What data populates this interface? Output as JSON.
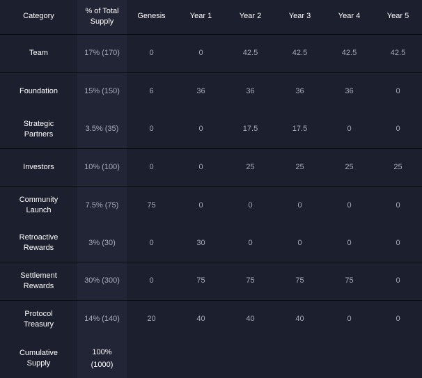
{
  "headers": [
    "Category",
    "% of Total Supply",
    "Genesis",
    "Year 1",
    "Year 2",
    "Year 3",
    "Year 4",
    "Year 5"
  ],
  "header_pct_lines": [
    "% of Total",
    "Supply"
  ],
  "rows": [
    {
      "category": [
        "Team"
      ],
      "pct": "17% (170)",
      "values": [
        "0",
        "0",
        "42.5",
        "42.5",
        "42.5",
        "42.5"
      ]
    },
    {
      "category": [
        "Foundation"
      ],
      "pct": "15% (150)",
      "values": [
        "6",
        "36",
        "36",
        "36",
        "36",
        "0"
      ]
    },
    {
      "category": [
        "Strategic",
        "Partners"
      ],
      "pct": "3.5% (35)",
      "values": [
        "0",
        "0",
        "17.5",
        "17.5",
        "0",
        "0"
      ]
    },
    {
      "category": [
        "Investors"
      ],
      "pct": "10% (100)",
      "values": [
        "0",
        "0",
        "25",
        "25",
        "25",
        "25"
      ]
    },
    {
      "category": [
        "Community",
        "Launch"
      ],
      "pct": "7.5% (75)",
      "values": [
        "75",
        "0",
        "0",
        "0",
        "0",
        "0"
      ]
    },
    {
      "category": [
        "Retroactive",
        "Rewards"
      ],
      "pct": "3% (30)",
      "values": [
        "0",
        "30",
        "0",
        "0",
        "0",
        "0"
      ]
    },
    {
      "category": [
        "Settlement",
        "Rewards"
      ],
      "pct": "30% (300)",
      "values": [
        "0",
        "75",
        "75",
        "75",
        "75",
        "0"
      ]
    },
    {
      "category": [
        "Protocol",
        "Treasury"
      ],
      "pct": "14% (140)",
      "values": [
        "20",
        "40",
        "40",
        "40",
        "0",
        "0"
      ]
    }
  ],
  "cumulative": {
    "category": [
      "Cumulative",
      "Supply"
    ],
    "pct": [
      "100%",
      "(1000)"
    ]
  }
}
